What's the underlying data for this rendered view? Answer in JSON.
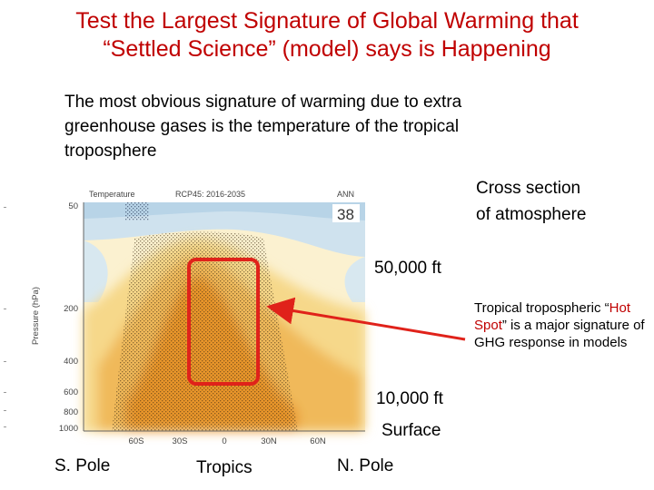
{
  "slide": {
    "title_line1": "Test the Largest Signature of Global Warming that",
    "title_line2": "“Settled Science” (model) says is Happening",
    "intro_line1": "The most obvious signature of warming due to extra",
    "intro_line2": "greenhouse gases is the temperature of the tropical",
    "intro_line3": "troposphere",
    "cross_line1": "Cross section",
    "cross_line2": "of atmosphere",
    "label_50k": "50,000 ft",
    "label_10k": "10,000 ft",
    "label_surface": "Surface",
    "label_spole": "S. Pole",
    "label_tropics": "Tropics",
    "label_npole": "N. Pole",
    "hotspot_part1": "Tropical tropospheric “",
    "hotspot_highlight": "Hot Spot",
    "hotspot_part2": "” is a major signature of GHG response in models"
  },
  "figure": {
    "header_left": "Temperature",
    "header_mid": "RCP45: 2016-2035",
    "header_right": "ANN",
    "badge_value": "38",
    "y_axis_label": "Pressure (hPa)",
    "y_ticks": [
      "50",
      "200",
      "400",
      "600",
      "800",
      "1000"
    ],
    "x_ticks": [
      "60S",
      "30S",
      "0",
      "30N",
      "60N"
    ]
  },
  "colors": {
    "title": "#c00000",
    "highlight_box": "#e0221a",
    "arrow": "#e0221a",
    "cold": "#cfe2ee",
    "warm": "#e8952a"
  }
}
